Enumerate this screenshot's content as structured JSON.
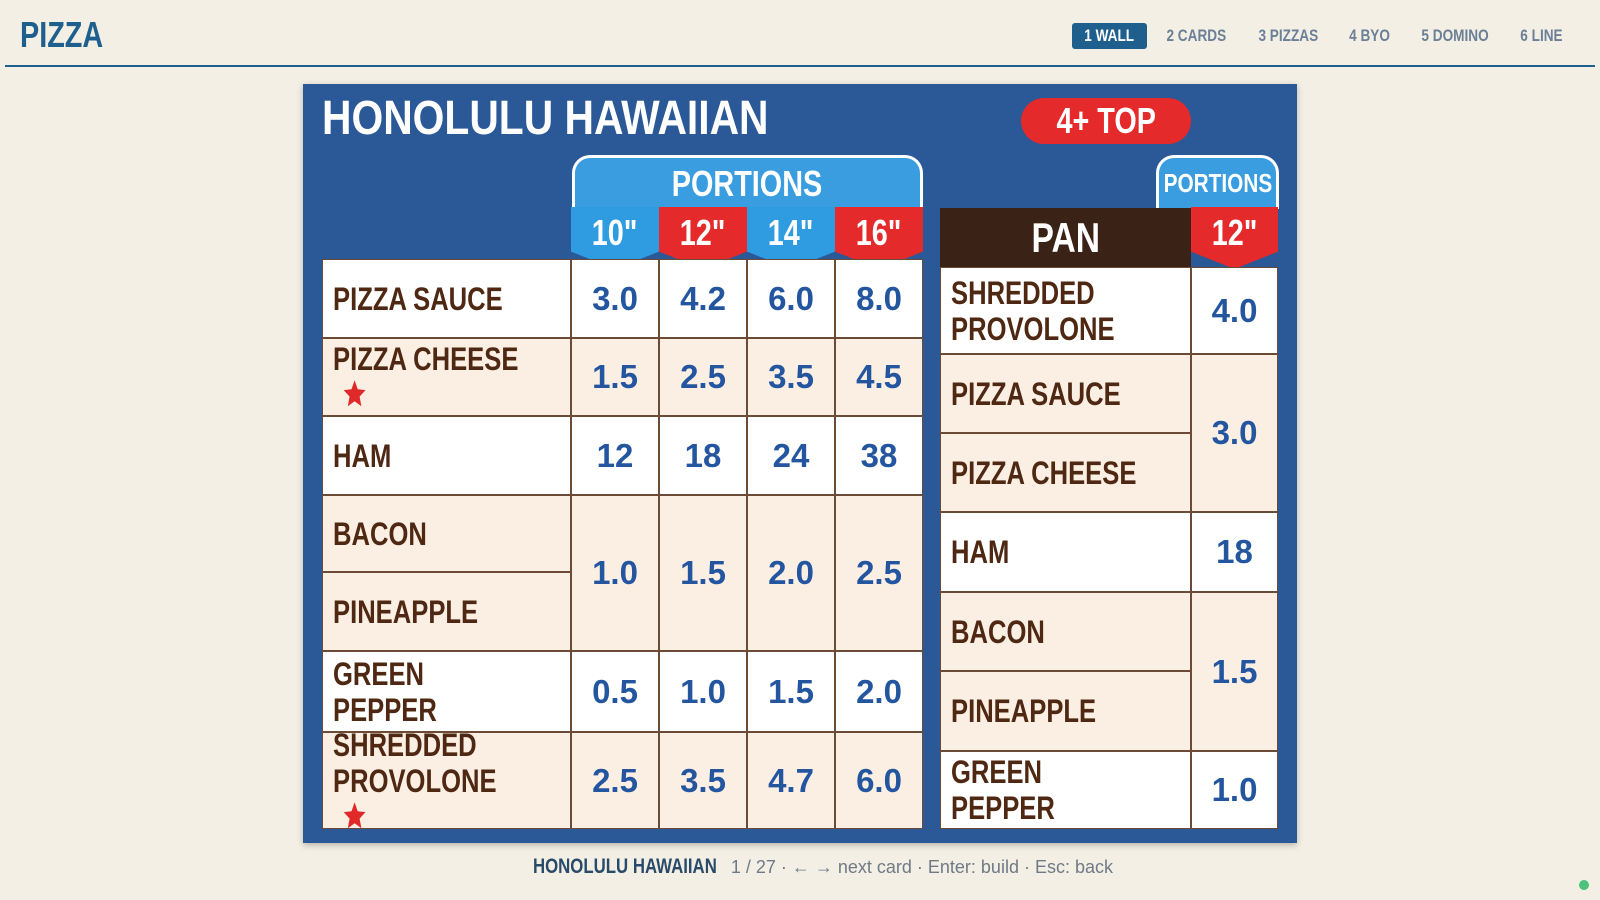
{
  "header": {
    "title": "PIZZA",
    "tabs": [
      {
        "label": "1 WALL",
        "active": true
      },
      {
        "label": "2 CARDS",
        "active": false
      },
      {
        "label": "3 PIZZAS",
        "active": false
      },
      {
        "label": "4 BYO",
        "active": false
      },
      {
        "label": "5 DOMINO",
        "active": false
      },
      {
        "label": "6 LINE",
        "active": false
      }
    ]
  },
  "card": {
    "title": "HONOLULU HAWAIIAN",
    "badge": "4+ TOP",
    "main": {
      "portions_label": "PORTIONS",
      "sizes": [
        {
          "label": "10\"",
          "color": "#2f9be0"
        },
        {
          "label": "12\"",
          "color": "#e42a2a"
        },
        {
          "label": "14\"",
          "color": "#2f9be0"
        },
        {
          "label": "16\"",
          "color": "#e42a2a"
        }
      ],
      "groups": [
        {
          "items": [
            {
              "name": "PIZZA SAUCE",
              "star": false
            }
          ],
          "values": [
            "3.0",
            "4.2",
            "6.0",
            "8.0"
          ]
        },
        {
          "items": [
            {
              "name": "PIZZA CHEESE",
              "star": true
            }
          ],
          "values": [
            "1.5",
            "2.5",
            "3.5",
            "4.5"
          ]
        },
        {
          "items": [
            {
              "name": "HAM",
              "star": false
            }
          ],
          "values": [
            "12",
            "18",
            "24",
            "38"
          ]
        },
        {
          "items": [
            {
              "name": "BACON",
              "star": false
            },
            {
              "name": "PINEAPPLE",
              "star": false
            }
          ],
          "values": [
            "1.0",
            "1.5",
            "2.0",
            "2.5"
          ]
        },
        {
          "items": [
            {
              "name": "GREEN PEPPER",
              "star": false
            }
          ],
          "values": [
            "0.5",
            "1.0",
            "1.5",
            "2.0"
          ]
        },
        {
          "items": [
            {
              "name": "SHREDDED PROVOLONE",
              "star": true
            }
          ],
          "values": [
            "2.5",
            "3.5",
            "4.7",
            "6.0"
          ]
        }
      ]
    },
    "pan": {
      "title": "PAN",
      "portions_label": "PORTIONS",
      "size": {
        "label": "12\"",
        "color": "#e42a2a"
      },
      "groups": [
        {
          "items": [
            "SHREDDED PROVOLONE"
          ],
          "value": "4.0"
        },
        {
          "items": [
            "PIZZA SAUCE",
            "PIZZA CHEESE"
          ],
          "value": "3.0"
        },
        {
          "items": [
            "HAM"
          ],
          "value": "18"
        },
        {
          "items": [
            "BACON",
            "PINEAPPLE"
          ],
          "value": "1.5"
        },
        {
          "items": [
            "GREEN PEPPER"
          ],
          "value": "1.0"
        }
      ]
    }
  },
  "footer": {
    "title": "HONOLULU HAWAIIAN",
    "hint": "1 / 27 · ← → next card · Enter: build · Esc: back"
  }
}
